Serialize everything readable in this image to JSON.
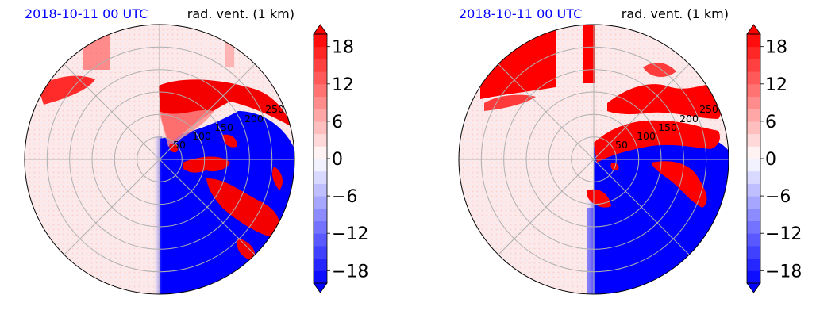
{
  "chart_data": [
    {
      "type": "heatmap",
      "projection": "polar radar display",
      "title_left": "2018-10-11 00 UTC",
      "title_right": "rad. vent. (1 km)",
      "title_left_color": "#0000ff",
      "range_rings": [
        50,
        100,
        150,
        200,
        250
      ],
      "grid": true,
      "colormap": "bwr",
      "colorbar": {
        "ticks": [
          18,
          12,
          6,
          0,
          -6,
          -12,
          -18
        ],
        "tick_labels": [
          "18",
          "12",
          "6",
          "0",
          "−6",
          "−12",
          "−18"
        ],
        "range": [
          -20,
          20
        ],
        "extend": "both",
        "levels": 20
      },
      "regions": {
        "west_half": "weak positive (~+1 to +2)",
        "north_band": "strong positive (>+18) near the northern rim",
        "southeast": "strong negative (<-18)",
        "east_streaks": "strong positive bands embedded in negative area"
      }
    },
    {
      "type": "heatmap",
      "projection": "polar radar display",
      "title_left": "2018-10-11 00 UTC",
      "title_right": "rad. vent. (1 km)",
      "title_left_color": "#0000ff",
      "range_rings": [
        50,
        100,
        150,
        200,
        250
      ],
      "grid": true,
      "colormap": "bwr",
      "colorbar": {
        "ticks": [
          18,
          12,
          6,
          0,
          -6,
          -12,
          -18
        ],
        "tick_labels": [
          "18",
          "12",
          "6",
          "0",
          "−6",
          "−12",
          "−18"
        ],
        "range": [
          -20,
          20
        ],
        "extend": "both",
        "levels": 20
      },
      "regions": {
        "west_half": "weak positive (~+1 to +2)",
        "north_band": "strong positive (>+18) in the north-west",
        "southeast": "strong negative (<-18)",
        "east_band": "strong positive band across the east"
      }
    }
  ]
}
